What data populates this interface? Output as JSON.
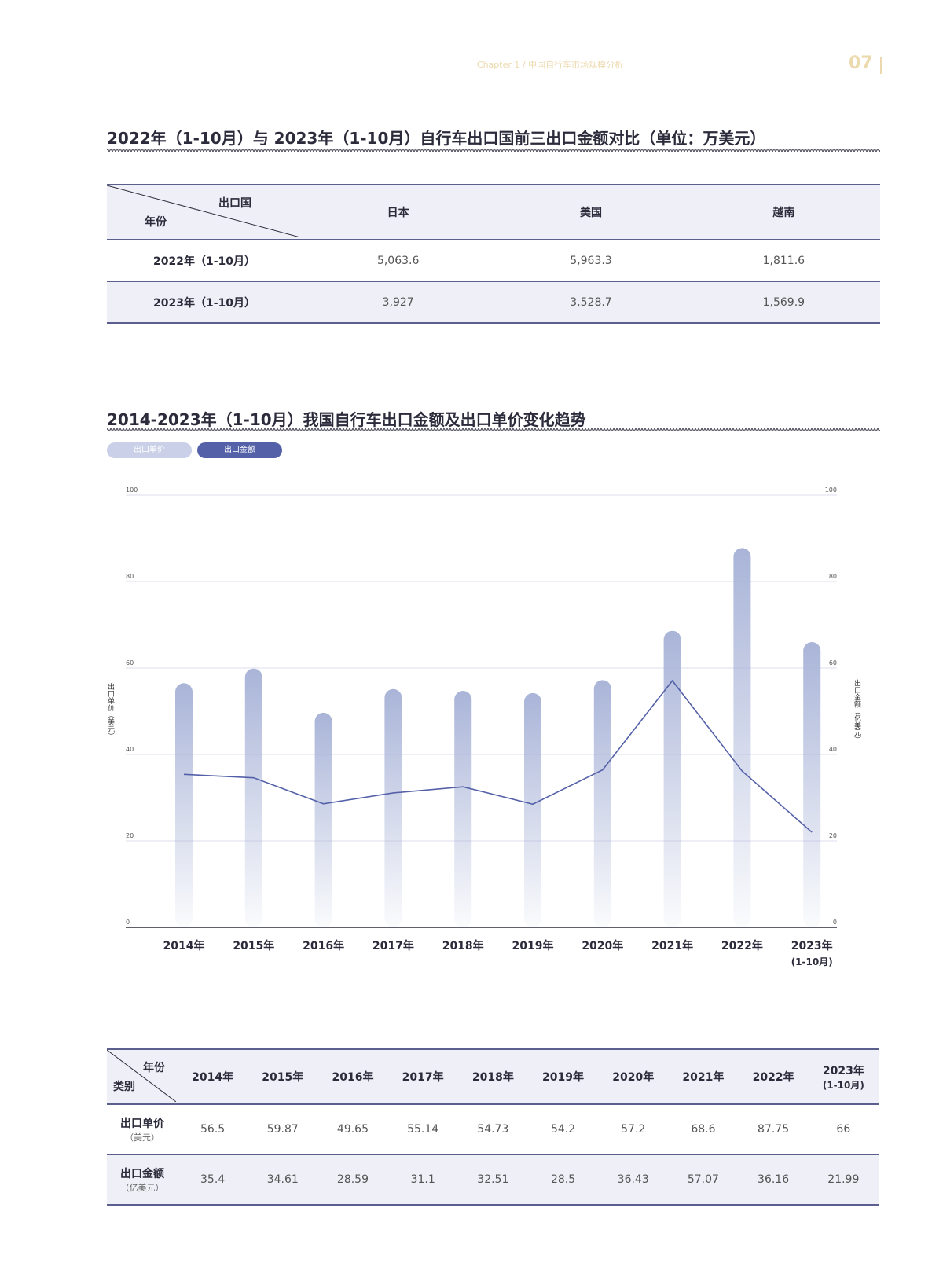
{
  "header": {
    "chapter": "Chapter 1  /  中国自行车市场规模分析",
    "page_number": "07"
  },
  "table1": {
    "title": "2022年（1-10月）与 2023年（1-10月）自行车出口国前三出口金额对比（单位：万美元）",
    "corner_top": "出口国",
    "corner_bottom": "年份",
    "columns": [
      "日本",
      "美国",
      "越南"
    ],
    "rows": [
      {
        "label": "2022年（1-10月）",
        "values": [
          "5,063.6",
          "5,963.3",
          "1,811.6"
        ]
      },
      {
        "label": "2023年（1-10月）",
        "values": [
          "3,927",
          "3,528.7",
          "1,569.9"
        ]
      }
    ]
  },
  "chart_title": "2014-2023年（1-10月）我国自行车出口金额及出口单价变化趋势",
  "legend": {
    "price": "出口单价",
    "amount": "出口金额"
  },
  "colors": {
    "bar": "#a9b4d8",
    "line": "#5461a8",
    "pill_price": "#c9d0e8",
    "pill_amount": "#5461a8",
    "accent": "#ecd9ad"
  },
  "chart_data": {
    "type": "bar",
    "categories": [
      "2014年",
      "2015年",
      "2016年",
      "2017年",
      "2018年",
      "2019年",
      "2020年",
      "2021年",
      "2022年",
      "2023年"
    ],
    "category_sublabels": [
      "",
      "",
      "",
      "",
      "",
      "",
      "",
      "",
      "",
      "(1-10月)"
    ],
    "series": [
      {
        "name": "出口单价",
        "type": "bar",
        "axis": "left",
        "values": [
          56.5,
          59.87,
          49.65,
          55.14,
          54.73,
          54.2,
          57.2,
          68.6,
          87.75,
          66
        ]
      },
      {
        "name": "出口金额",
        "type": "line",
        "axis": "right",
        "values": [
          35.4,
          34.61,
          28.59,
          31.1,
          32.51,
          28.5,
          36.43,
          57.07,
          36.16,
          21.99
        ]
      }
    ],
    "ylabel": "出口单价（美元）",
    "y2label": "出口金额（亿美元）",
    "ylim": [
      0,
      100
    ],
    "yticks": [
      0,
      20,
      40,
      60,
      80,
      100
    ],
    "grid": true
  },
  "table2": {
    "corner_top": "年份",
    "corner_bottom": "类别",
    "columns": [
      "2014年",
      "2015年",
      "2016年",
      "2017年",
      "2018年",
      "2019年",
      "2020年",
      "2021年",
      "2022年",
      "2023年"
    ],
    "last_col_sub": "(1-10月)",
    "rows": [
      {
        "label": "出口单价",
        "sub": "（美元）",
        "values": [
          "56.5",
          "59.87",
          "49.65",
          "55.14",
          "54.73",
          "54.2",
          "57.2",
          "68.6",
          "87.75",
          "66"
        ]
      },
      {
        "label": "出口金额",
        "sub": "（亿美元）",
        "values": [
          "35.4",
          "34.61",
          "28.59",
          "31.1",
          "32.51",
          "28.5",
          "36.43",
          "57.07",
          "36.16",
          "21.99"
        ]
      }
    ]
  }
}
